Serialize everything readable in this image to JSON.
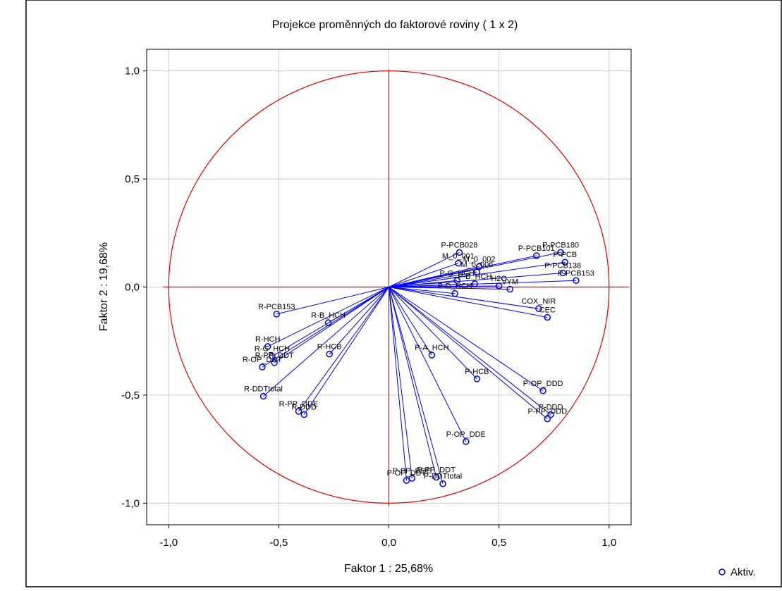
{
  "chart_data": {
    "type": "scatter",
    "title": "Projekce proměnných do faktorové roviny      ( 1 x  2)",
    "x_label": "Faktor 1 : 25,68%",
    "y_label": "Faktor 2 : 19,68%",
    "xlim": [
      -1.1,
      1.1
    ],
    "ylim": [
      -1.1,
      1.1
    ],
    "xticks": [
      {
        "value": -1.0,
        "label": "-1,0"
      },
      {
        "value": -0.5,
        "label": "-0,5"
      },
      {
        "value": 0,
        "label": "0,0"
      },
      {
        "value": 0.5,
        "label": "0,5"
      },
      {
        "value": 1.0,
        "label": "1,0"
      }
    ],
    "yticks": [
      {
        "value": -1.0,
        "label": "-1,0"
      },
      {
        "value": -0.5,
        "label": "-0,5"
      },
      {
        "value": 0,
        "label": "0,0"
      },
      {
        "value": 0.5,
        "label": "0,5"
      },
      {
        "value": 1.0,
        "label": "1,0"
      }
    ],
    "grid": true,
    "unit_circle": true,
    "legend_position": "bottom-right",
    "series": [
      {
        "name": "Aktiv.",
        "color": "#0000ff",
        "labels": [
          "P-PCB180",
          "P-PCB101",
          "P-PCB",
          "P-PCB138",
          "P-PCB153",
          "P-PCB028",
          "M_0_001",
          "M_0_002",
          "M_0_006",
          "P-G_HCH",
          "P-B_HCH",
          "H2O",
          "VYM",
          "P-D_HCH",
          "COX_NIR",
          "CEC",
          "R-PCB153",
          "R-B_HCH",
          "R-HCH",
          "R-G_HCH",
          "R-PP_DDT",
          "R-OP_DDT",
          "R-HCB",
          "R-DDTtotal",
          "R-PP_DDE",
          "R-DDD",
          "P-A_HCH",
          "P-HCB",
          "P-OP_DDD",
          "P-DDD",
          "P-PP_DDD",
          "P-OP_DDE",
          "P-PP_DDT",
          "P-DDTtotal",
          "P-PP_DDE",
          "P-OP_DDT"
        ],
        "x": [
          0.78,
          0.67,
          0.8,
          0.79,
          0.85,
          0.32,
          0.315,
          0.41,
          0.4,
          0.31,
          0.39,
          0.5,
          0.55,
          0.3,
          0.68,
          0.72,
          -0.51,
          -0.275,
          -0.55,
          -0.53,
          -0.52,
          -0.575,
          -0.27,
          -0.57,
          -0.41,
          -0.385,
          0.195,
          0.4,
          0.7,
          0.735,
          0.72,
          0.35,
          0.215,
          0.245,
          0.105,
          0.08
        ],
        "y": [
          0.16,
          0.145,
          0.115,
          0.065,
          0.03,
          0.16,
          0.11,
          0.095,
          0.07,
          0.03,
          0.015,
          0.005,
          -0.01,
          -0.03,
          -0.1,
          -0.14,
          -0.125,
          -0.165,
          -0.275,
          -0.32,
          -0.35,
          -0.37,
          -0.31,
          -0.505,
          -0.575,
          -0.59,
          -0.315,
          -0.425,
          -0.48,
          -0.59,
          -0.61,
          -0.715,
          -0.88,
          -0.91,
          -0.885,
          -0.895
        ]
      }
    ]
  }
}
